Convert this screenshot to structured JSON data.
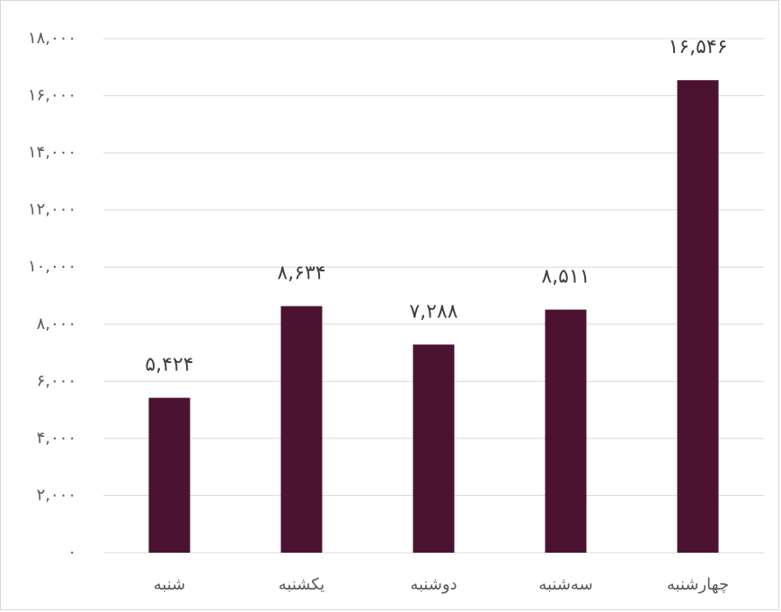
{
  "chart_data": {
    "type": "bar",
    "categories": [
      "شنبه",
      "یکشنبه",
      "دوشنبه",
      "سه‌شنبه",
      "چهارشنبه"
    ],
    "values": [
      5424,
      8634,
      7288,
      8511,
      16546
    ],
    "value_labels": [
      "۵,۴۲۴",
      "۸,۶۳۴",
      "۷,۲۸۸",
      "۸,۵۱۱",
      "۱۶,۵۴۶"
    ],
    "color": "#4b1331",
    "ylim": [
      0,
      18000
    ],
    "yticks": [
      {
        "value": 0,
        "label": "۰"
      },
      {
        "value": 2000,
        "label": "۲,۰۰۰"
      },
      {
        "value": 4000,
        "label": "۴,۰۰۰"
      },
      {
        "value": 6000,
        "label": "۶,۰۰۰"
      },
      {
        "value": 8000,
        "label": "۸,۰۰۰"
      },
      {
        "value": 10000,
        "label": "۱۰,۰۰۰"
      },
      {
        "value": 12000,
        "label": "۱۲,۰۰۰"
      },
      {
        "value": 14000,
        "label": "۱۴,۰۰۰"
      },
      {
        "value": 16000,
        "label": "۱۶,۰۰۰"
      },
      {
        "value": 18000,
        "label": "۱۸,۰۰۰"
      }
    ],
    "grid": true
  }
}
